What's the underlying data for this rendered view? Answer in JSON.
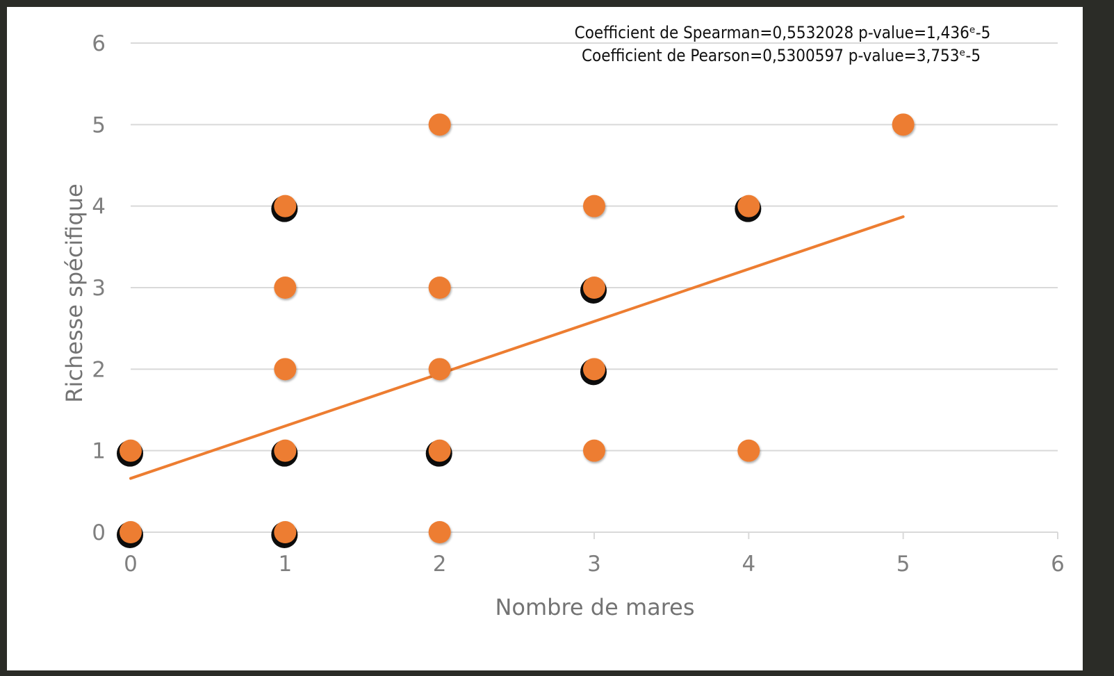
{
  "chart_data": {
    "type": "scatter",
    "xlabel": "Nombre de mares",
    "ylabel": "Richesse spécifique",
    "xlim": [
      0,
      6
    ],
    "ylim": [
      0,
      6
    ],
    "x_ticks": [
      "0",
      "1",
      "2",
      "3",
      "4",
      "5",
      "6"
    ],
    "y_ticks": [
      "0",
      "1",
      "2",
      "3",
      "4",
      "5",
      "6"
    ],
    "grid": "horizontal",
    "annotations": [
      "Coefficient de Spearman=0,5532028 p-value=1,436ᵉ-5",
      "Coefficient de Pearson=0,5300597 p-value=3,753ᵉ-5"
    ],
    "points": [
      {
        "x": 0,
        "y": 0,
        "overlap": true
      },
      {
        "x": 0,
        "y": 1,
        "overlap": true
      },
      {
        "x": 1,
        "y": 0,
        "overlap": true
      },
      {
        "x": 1,
        "y": 1,
        "overlap": true
      },
      {
        "x": 1,
        "y": 2,
        "overlap": false
      },
      {
        "x": 1,
        "y": 3,
        "overlap": false
      },
      {
        "x": 1,
        "y": 4,
        "overlap": true
      },
      {
        "x": 2,
        "y": 0,
        "overlap": false
      },
      {
        "x": 2,
        "y": 1,
        "overlap": true
      },
      {
        "x": 2,
        "y": 2,
        "overlap": false
      },
      {
        "x": 2,
        "y": 3,
        "overlap": false
      },
      {
        "x": 2,
        "y": 5,
        "overlap": false
      },
      {
        "x": 3,
        "y": 1,
        "overlap": false
      },
      {
        "x": 3,
        "y": 2,
        "overlap": true
      },
      {
        "x": 3,
        "y": 3,
        "overlap": true
      },
      {
        "x": 3,
        "y": 4,
        "overlap": false
      },
      {
        "x": 4,
        "y": 1,
        "overlap": false
      },
      {
        "x": 4,
        "y": 4,
        "overlap": true
      },
      {
        "x": 5,
        "y": 5,
        "overlap": false
      }
    ],
    "trendline": {
      "x0": 0,
      "y0": 0.66,
      "x1": 5,
      "y1": 3.87
    },
    "colors": {
      "marker": "#ed7d31",
      "trendline": "#ed7d31",
      "gridline": "#d9d9d9",
      "overlap_shadow": "#000000"
    }
  }
}
